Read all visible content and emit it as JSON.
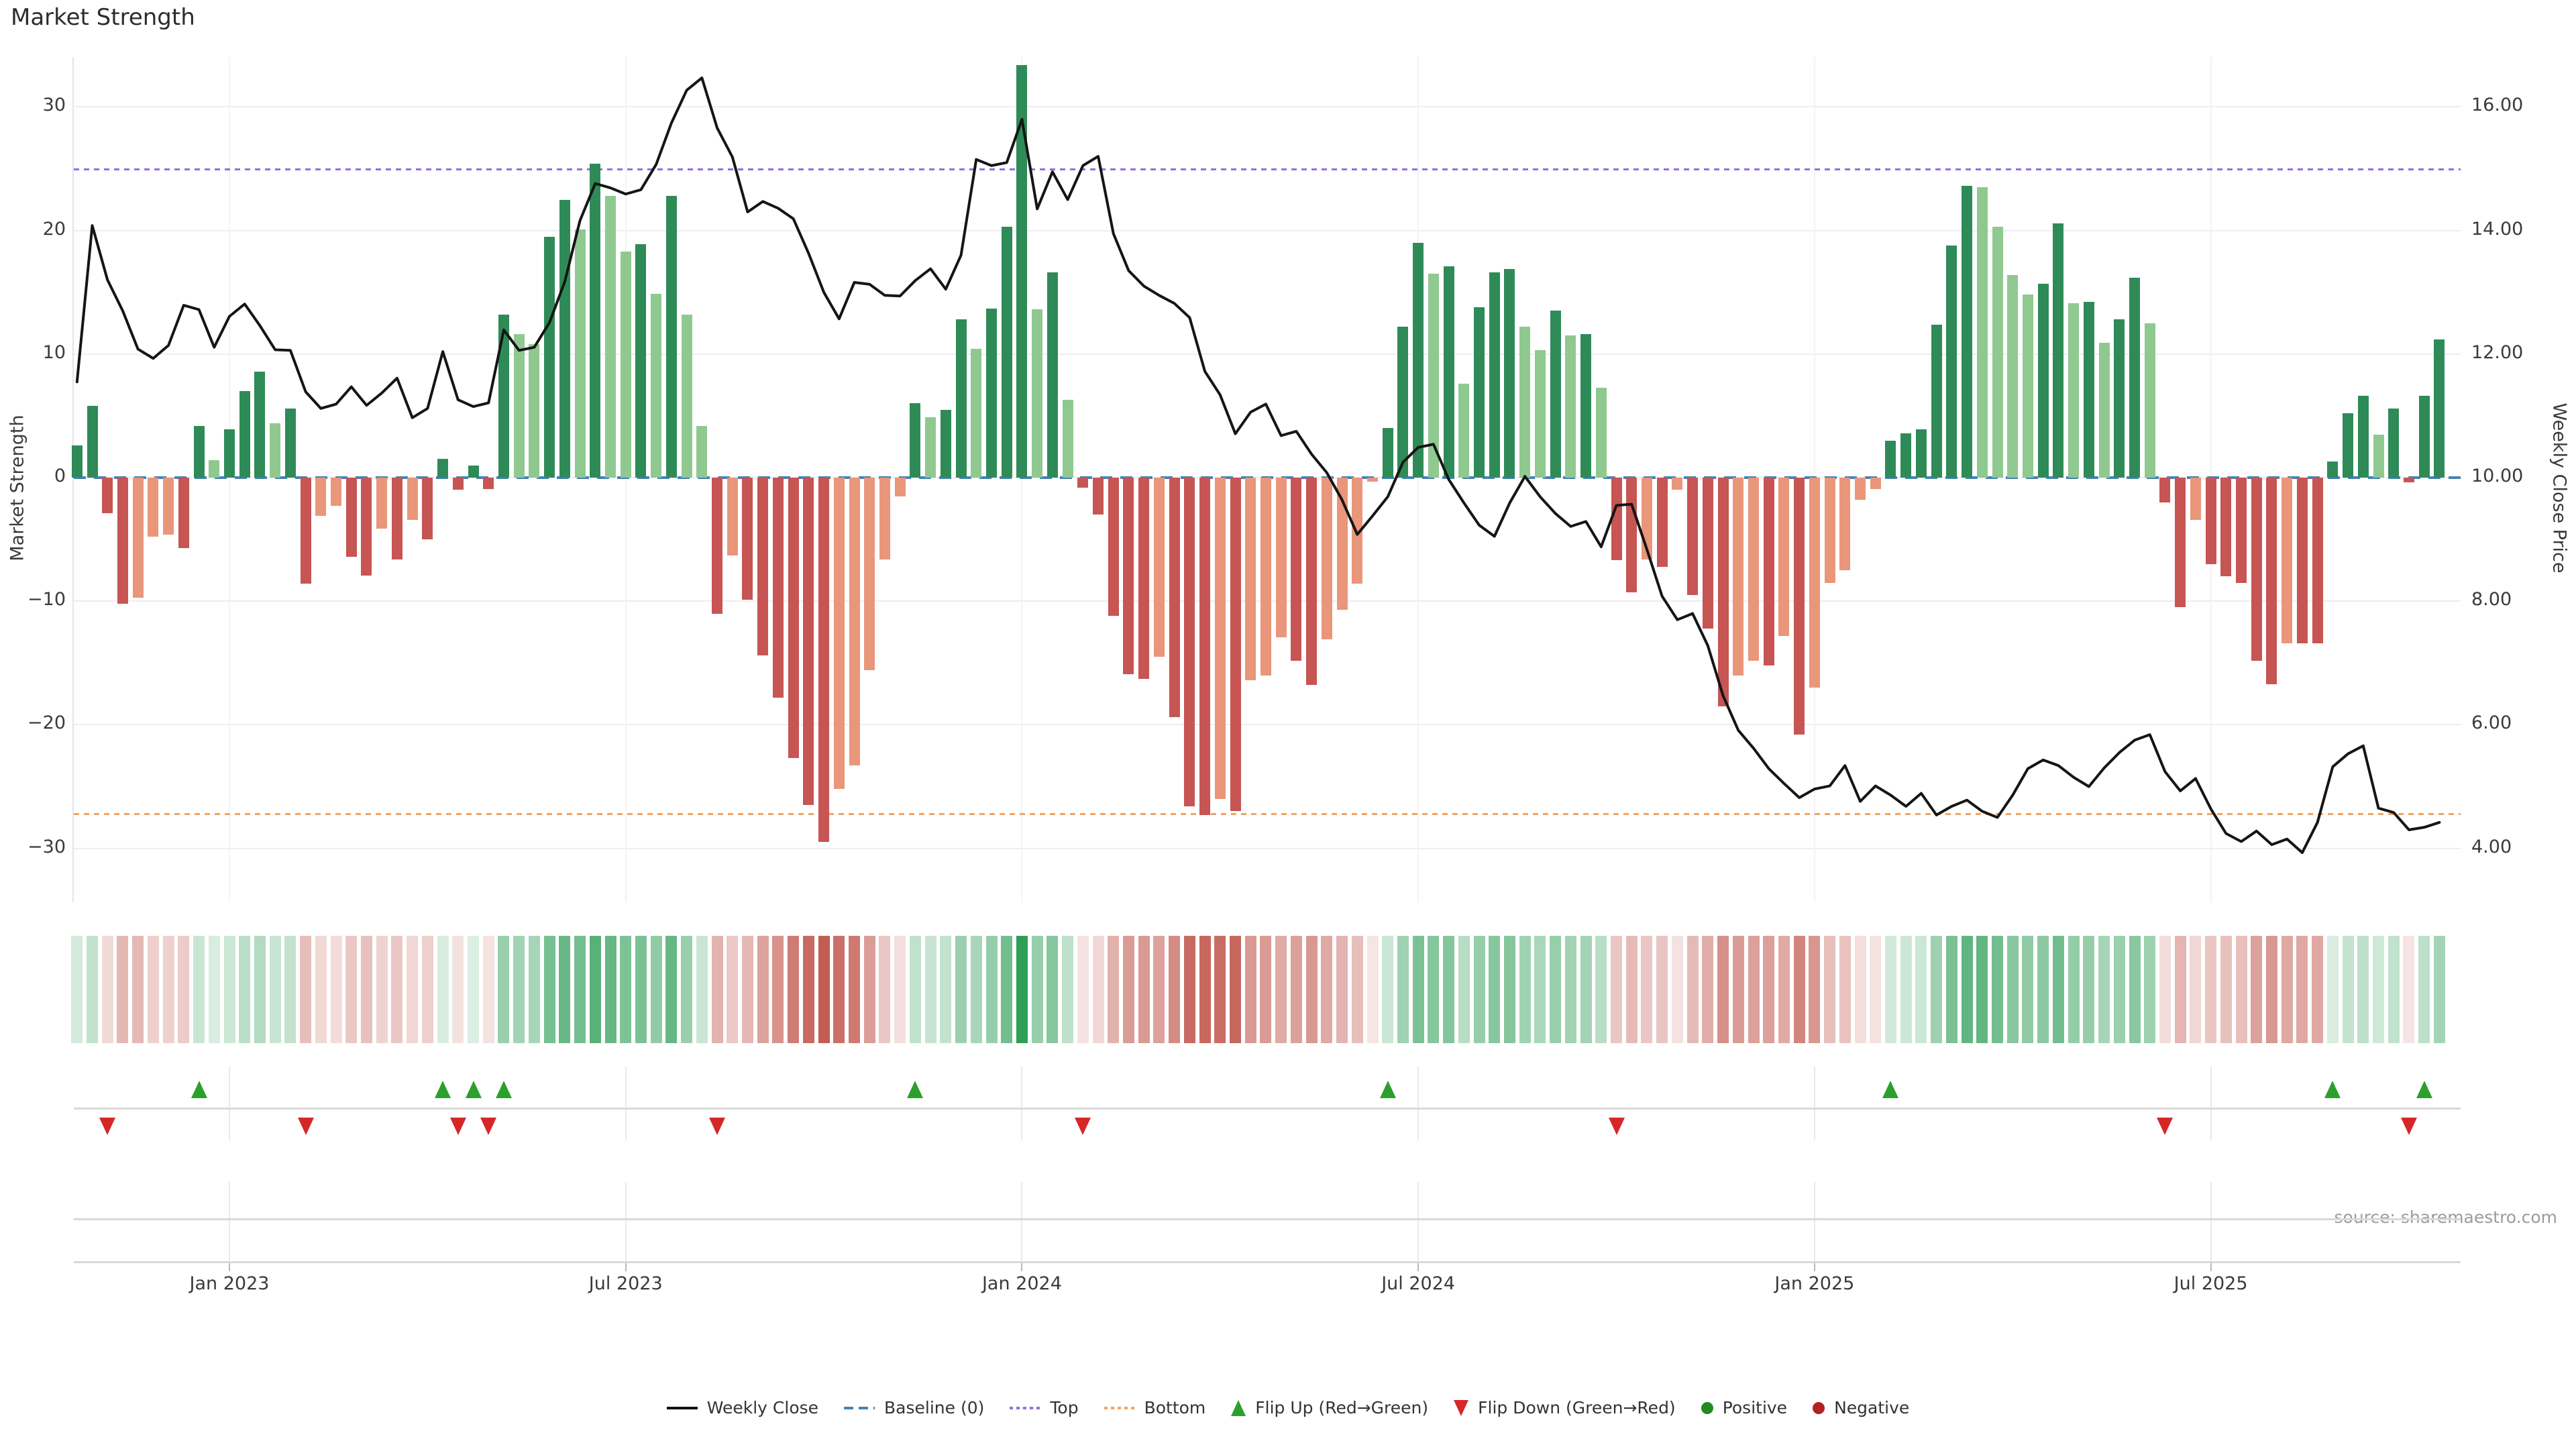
{
  "title": "Market Strength",
  "source": "source: sharemaestro.com",
  "axes": {
    "left_label": "Market Strength",
    "right_label": "Weekly Close Price",
    "left_ticks": [
      "30",
      "20",
      "10",
      "0",
      "−10",
      "−20",
      "−30"
    ],
    "right_ticks": [
      "16.00",
      "14.00",
      "12.00",
      "10.00",
      "8.00",
      "6.00",
      "4.00"
    ],
    "x_ticks": [
      "Jan 2023",
      "Jul 2023",
      "Jan 2024",
      "Jul 2024",
      "Jan 2025",
      "Jul 2025"
    ]
  },
  "legend": [
    {
      "label": "Weekly Close",
      "type": "line"
    },
    {
      "label": "Baseline (0)",
      "type": "dash-blue"
    },
    {
      "label": "Top",
      "type": "dot-purple"
    },
    {
      "label": "Bottom",
      "type": "dot-orange"
    },
    {
      "label": "Flip Up (Red→Green)",
      "type": "tri-up"
    },
    {
      "label": "Flip Down (Green→Red)",
      "type": "tri-down"
    },
    {
      "label": "Positive",
      "type": "circle-green"
    },
    {
      "label": "Negative",
      "type": "circle-red"
    }
  ],
  "colors": {
    "bar_pos_dark": "#2e8b57",
    "bar_pos_light": "#8fc98f",
    "bar_neg_dark": "#c65553",
    "bar_neg_light": "#e9967a",
    "price_line": "#151515",
    "baseline": "#4682b4",
    "top_line": "#9370db",
    "bottom_line": "#f4a460",
    "flip_up": "#2ca02c",
    "flip_down": "#d62728",
    "positive_dot": "#228b22",
    "negative_dot": "#b22222",
    "heat_pos": "#2f9e57",
    "heat_neg": "#c25a50"
  },
  "chart_data": {
    "type": "bar",
    "title": "Market Strength",
    "n": 156,
    "x_start": "2022-10-24",
    "x_step_days": 7,
    "x_tick_indices": [
      10,
      36,
      62,
      88,
      114,
      140
    ],
    "xlabel": "",
    "ylabel": "Market Strength",
    "ylabel_right": "Weekly Close Price",
    "left_ylim": [
      -34.4,
      34.0
    ],
    "right_ylim": [
      3.13,
      16.81
    ],
    "baseline": 0,
    "top_line": 25.0,
    "bottom_line": -27.2,
    "grid": true,
    "legend_position": "bottom-center",
    "strength": [
      2.6,
      5.8,
      -2.9,
      -10.2,
      -9.7,
      -4.8,
      -4.6,
      -5.7,
      4.2,
      1.4,
      3.9,
      7.0,
      8.6,
      4.4,
      5.6,
      -8.6,
      -3.1,
      -2.3,
      -6.4,
      -7.9,
      -4.1,
      -6.6,
      -3.4,
      -5.0,
      1.5,
      -1.0,
      1.0,
      -0.9,
      13.2,
      11.6,
      10.8,
      19.5,
      22.5,
      20.1,
      25.4,
      22.8,
      18.3,
      18.9,
      14.9,
      22.8,
      13.2,
      4.2,
      -11.0,
      -6.3,
      -9.9,
      -14.4,
      -17.8,
      -22.7,
      -26.5,
      -29.5,
      -25.2,
      -23.3,
      -15.6,
      -6.6,
      -1.5,
      6.0,
      4.9,
      5.5,
      12.8,
      10.4,
      13.7,
      20.3,
      33.4,
      13.6,
      16.6,
      6.3,
      -0.8,
      -3.0,
      -11.2,
      -15.9,
      -16.3,
      -14.5,
      -19.4,
      -26.6,
      -27.3,
      -26.0,
      -27.0,
      -16.4,
      -16.0,
      -12.9,
      -14.8,
      -16.8,
      -13.1,
      -10.7,
      -8.6,
      -0.3,
      4.0,
      12.2,
      19.0,
      16.5,
      17.1,
      7.6,
      13.8,
      16.6,
      16.9,
      12.2,
      10.3,
      13.5,
      11.5,
      11.6,
      7.3,
      -6.7,
      -9.3,
      -6.6,
      -7.2,
      -1.0,
      -9.5,
      -12.2,
      -18.5,
      -16.0,
      -14.8,
      -15.2,
      -12.8,
      -20.8,
      -17.0,
      -8.5,
      -7.5,
      -1.8,
      -0.9,
      3.0,
      3.6,
      3.9,
      12.4,
      18.8,
      23.6,
      23.5,
      20.3,
      16.4,
      14.8,
      15.7,
      20.6,
      14.1,
      14.2,
      10.9,
      12.8,
      16.2,
      12.5,
      -2.0,
      -10.5,
      -3.4,
      -7.0,
      -8.0,
      -8.5,
      -14.8,
      -16.7,
      -13.4,
      -13.4,
      -13.4,
      1.3,
      5.2,
      6.6,
      3.5,
      5.6,
      -0.4,
      6.6,
      11.2
    ],
    "weekly_close": [
      11.55,
      14.08,
      13.2,
      12.7,
      12.08,
      11.93,
      12.14,
      12.79,
      12.72,
      12.11,
      12.61,
      12.81,
      12.46,
      12.07,
      12.06,
      11.39,
      11.12,
      11.19,
      11.47,
      11.17,
      11.37,
      11.61,
      10.97,
      11.12,
      12.04,
      11.26,
      11.15,
      11.21,
      12.39,
      12.06,
      12.11,
      12.51,
      13.17,
      14.16,
      14.76,
      14.69,
      14.59,
      14.66,
      15.07,
      15.74,
      16.27,
      16.47,
      15.66,
      15.19,
      14.3,
      14.47,
      14.36,
      14.19,
      13.63,
      13.0,
      12.57,
      13.16,
      13.13,
      12.95,
      12.94,
      13.19,
      13.38,
      13.05,
      13.6,
      15.15,
      15.05,
      15.1,
      15.8,
      14.35,
      14.95,
      14.5,
      15.05,
      15.2,
      13.95,
      13.35,
      13.1,
      12.95,
      12.82,
      12.59,
      11.72,
      11.34,
      10.71,
      11.06,
      11.19,
      10.68,
      10.75,
      10.38,
      10.08,
      9.64,
      9.08,
      9.38,
      9.69,
      10.25,
      10.49,
      10.54,
      9.97,
      9.59,
      9.23,
      9.05,
      9.59,
      10.02,
      9.69,
      9.42,
      9.21,
      9.29,
      8.88,
      9.55,
      9.57,
      8.84,
      8.08,
      7.7,
      7.8,
      7.28,
      6.47,
      5.91,
      5.62,
      5.29,
      5.05,
      4.82,
      4.96,
      5.01,
      5.34,
      4.76,
      5.01,
      4.86,
      4.68,
      4.89,
      4.54,
      4.68,
      4.78,
      4.6,
      4.5,
      4.86,
      5.29,
      5.43,
      5.34,
      5.15,
      5.0,
      5.3,
      5.55,
      5.75,
      5.84,
      5.24,
      4.93,
      5.13,
      4.64,
      4.24,
      4.11,
      4.28,
      4.06,
      4.15,
      3.93,
      4.42,
      5.32,
      5.53,
      5.66,
      4.65,
      4.58,
      4.3,
      4.34,
      4.42
    ],
    "flip_up_indices": [
      8,
      24,
      26,
      28,
      55,
      86,
      119,
      148,
      154
    ],
    "flip_down_indices": [
      2,
      15,
      25,
      27,
      42,
      66,
      101,
      137,
      153
    ]
  }
}
